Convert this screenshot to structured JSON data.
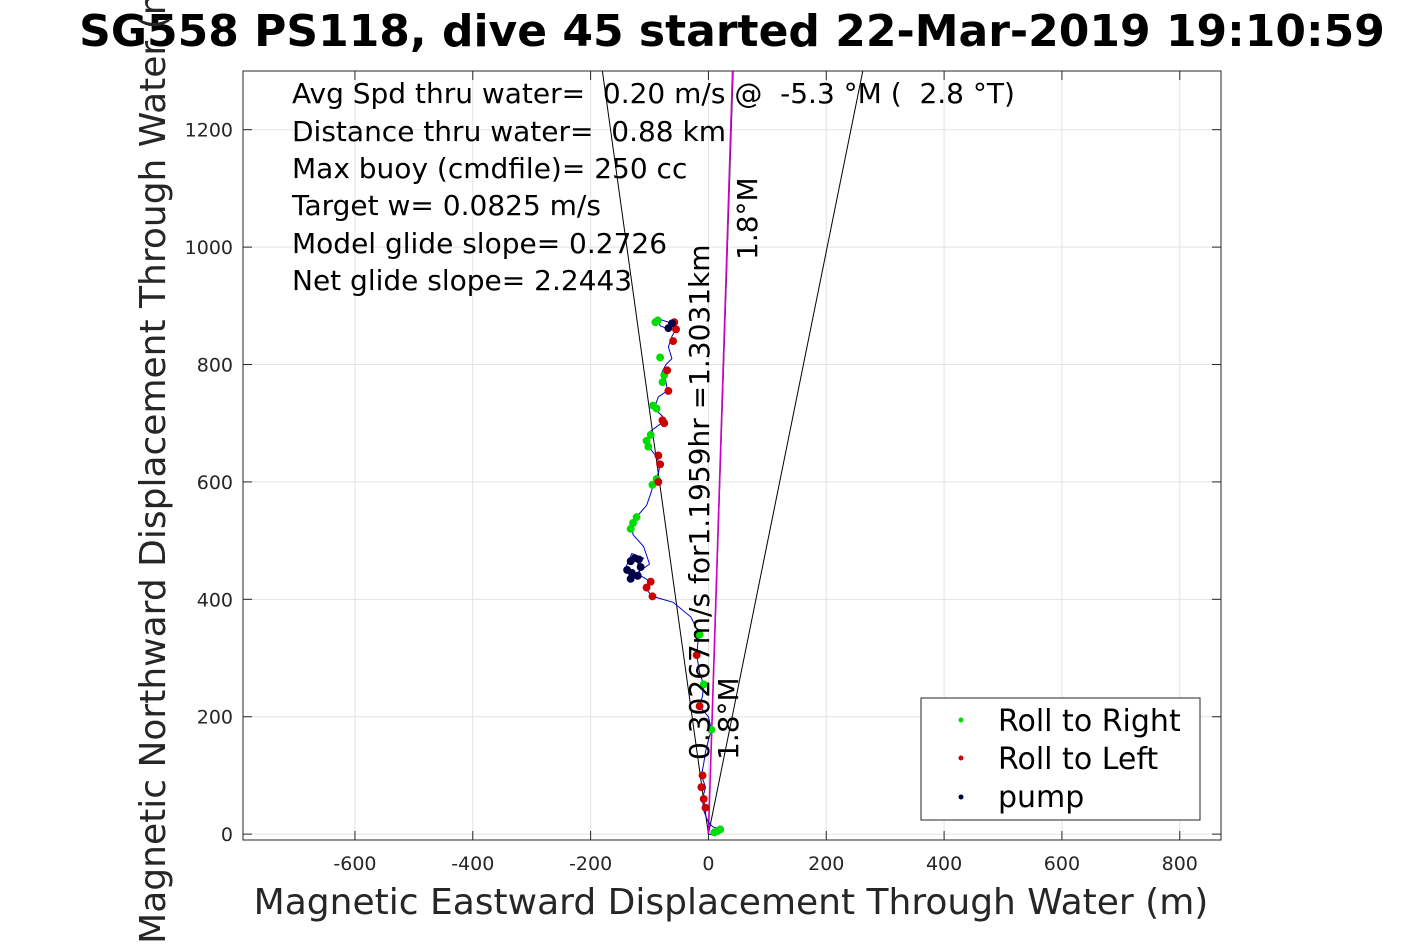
{
  "chart_data": {
    "type": "scatter",
    "title": "SG558 PS118, dive 45 started 22-Mar-2019 19:10:59",
    "xlabel": "Magnetic Eastward Displacement Through Water (m)",
    "ylabel": "Magnetic Northward Displacement Through Water (m)",
    "xlim": [
      -790,
      870
    ],
    "ylim": [
      -10,
      1300
    ],
    "xticks": [
      -600,
      -400,
      -200,
      0,
      200,
      400,
      600,
      800
    ],
    "yticks": [
      0,
      200,
      400,
      600,
      800,
      1000,
      1200
    ],
    "xtick_labels": [
      "-600",
      "-400",
      "-200",
      "0",
      "200",
      "400",
      "600",
      "800"
    ],
    "ytick_labels": [
      "0",
      "200",
      "400",
      "600",
      "800",
      "1000",
      "1200"
    ],
    "grid": true,
    "legend_position": "bottom-right",
    "annotations": [
      "Avg Spd thru water=  0.20 m/s @  -5.3 °M (  2.8 °T)",
      "Distance thru water=  0.88 km",
      "Max buoy (cmdfile)= 250 cc",
      "Target w= 0.0825 m/s",
      "Model glide slope= 0.2726",
      "Net glide slope= 2.2443"
    ],
    "vector_label": "0.30267m/s for1.1959hr =1.3031km",
    "heading_label_upper": "1.8°M",
    "heading_label_lower": "1.8°M",
    "cone_lines": [
      {
        "from": [
          0,
          0
        ],
        "to": [
          -180,
          1300
        ]
      },
      {
        "from": [
          0,
          0
        ],
        "to": [
          262,
          1300
        ]
      },
      {
        "from": [
          0,
          0
        ],
        "to": [
          42,
          1300
        ]
      }
    ],
    "vector_line": {
      "from": [
        0,
        0
      ],
      "to": [
        41,
        1303
      ]
    },
    "series": [
      {
        "name": "Roll to Right",
        "color": "#00dd00",
        "points": [
          [
            15,
            5
          ],
          [
            20,
            8
          ],
          [
            10,
            3
          ],
          [
            5,
            178
          ],
          [
            -8,
            255
          ],
          [
            -15,
            340
          ],
          [
            -128,
            530
          ],
          [
            -122,
            540
          ],
          [
            -132,
            520
          ],
          [
            -95,
            595
          ],
          [
            -88,
            605
          ],
          [
            -105,
            670
          ],
          [
            -98,
            680
          ],
          [
            -102,
            660
          ],
          [
            -88,
            725
          ],
          [
            -94,
            730
          ],
          [
            -78,
            770
          ],
          [
            -75,
            782
          ],
          [
            -82,
            812
          ],
          [
            -86,
            875
          ],
          [
            -90,
            872
          ]
        ]
      },
      {
        "name": "Roll to Left",
        "color": "#cc0000",
        "points": [
          [
            -8,
            60
          ],
          [
            -5,
            45
          ],
          [
            -12,
            80
          ],
          [
            -10,
            100
          ],
          [
            -15,
            218
          ],
          [
            -20,
            305
          ],
          [
            -95,
            405
          ],
          [
            -105,
            420
          ],
          [
            -98,
            430
          ],
          [
            -85,
            600
          ],
          [
            -82,
            630
          ],
          [
            -85,
            645
          ],
          [
            -75,
            700
          ],
          [
            -78,
            705
          ],
          [
            -68,
            755
          ],
          [
            -70,
            790
          ],
          [
            -60,
            840
          ],
          [
            -55,
            860
          ],
          [
            -58,
            872
          ]
        ]
      },
      {
        "name": "pump",
        "color": "#000044",
        "points": [
          [
            -132,
            435
          ],
          [
            -138,
            450
          ],
          [
            -132,
            465
          ],
          [
            -118,
            468
          ],
          [
            -115,
            455
          ],
          [
            -120,
            440
          ],
          [
            -125,
            470
          ],
          [
            -130,
            445
          ],
          [
            -62,
            870
          ],
          [
            -68,
            862
          ]
        ]
      }
    ],
    "track": [
      [
        0,
        0
      ],
      [
        12,
        -2
      ],
      [
        22,
        5
      ],
      [
        18,
        10
      ],
      [
        8,
        12
      ],
      [
        0,
        20
      ],
      [
        -8,
        40
      ],
      [
        -10,
        60
      ],
      [
        -5,
        80
      ],
      [
        -12,
        100
      ],
      [
        -8,
        120
      ],
      [
        -5,
        140
      ],
      [
        0,
        160
      ],
      [
        5,
        178
      ],
      [
        0,
        200
      ],
      [
        -15,
        218
      ],
      [
        -10,
        235
      ],
      [
        -8,
        255
      ],
      [
        -15,
        275
      ],
      [
        -20,
        305
      ],
      [
        -18,
        325
      ],
      [
        -15,
        340
      ],
      [
        -30,
        370
      ],
      [
        -60,
        395
      ],
      [
        -95,
        405
      ],
      [
        -108,
        420
      ],
      [
        -98,
        430
      ],
      [
        -115,
        440
      ],
      [
        -120,
        460
      ],
      [
        -110,
        470
      ],
      [
        -130,
        478
      ],
      [
        -140,
        455
      ],
      [
        -128,
        440
      ],
      [
        -100,
        460
      ],
      [
        -110,
        490
      ],
      [
        -128,
        510
      ],
      [
        -130,
        530
      ],
      [
        -118,
        545
      ],
      [
        -105,
        560
      ],
      [
        -98,
        580
      ],
      [
        -92,
        600
      ],
      [
        -85,
        615
      ],
      [
        -82,
        630
      ],
      [
        -90,
        645
      ],
      [
        -105,
        665
      ],
      [
        -100,
        685
      ],
      [
        -80,
        700
      ],
      [
        -78,
        712
      ],
      [
        -92,
        725
      ],
      [
        -85,
        745
      ],
      [
        -70,
        755
      ],
      [
        -72,
        772
      ],
      [
        -80,
        785
      ],
      [
        -72,
        800
      ],
      [
        -62,
        810
      ],
      [
        -68,
        830
      ],
      [
        -62,
        848
      ],
      [
        -55,
        860
      ],
      [
        -68,
        872
      ],
      [
        -86,
        878
      ],
      [
        -82,
        866
      ],
      [
        -72,
        862
      ]
    ]
  }
}
